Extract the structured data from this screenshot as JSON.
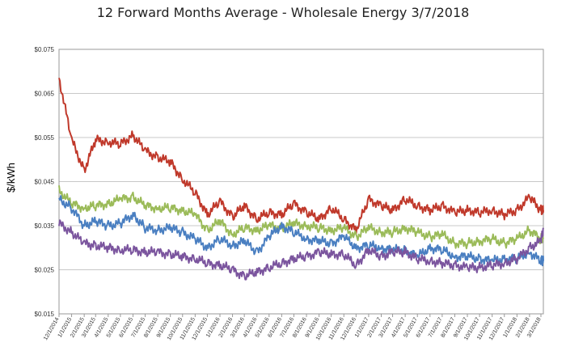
{
  "chart_data": {
    "type": "line",
    "title": "12 Forward Months Average - Wholesale Energy 3/7/2018",
    "xlabel": "",
    "ylabel": "$/kWh",
    "ylim": [
      0.015,
      0.075
    ],
    "yticks": [
      "$0.015",
      "$0.025",
      "$0.035",
      "$0.045",
      "$0.055",
      "$0.065",
      "$0.075"
    ],
    "grid": "horizontal",
    "legend": "none",
    "xlim": [
      "2014-12-01",
      "2018-03-07"
    ],
    "x_tick_labels": [
      "12/1/2014",
      "1/1/2015",
      "2/1/2015",
      "3/1/2015",
      "4/1/2015",
      "5/1/2015",
      "6/1/2015",
      "7/1/2015",
      "8/1/2015",
      "9/1/2015",
      "10/1/2015",
      "11/1/2015",
      "12/1/2015",
      "1/1/2016",
      "2/1/2016",
      "3/1/2016",
      "4/1/2016",
      "5/1/2016",
      "6/1/2016",
      "7/1/2016",
      "8/1/2016",
      "9/1/2016",
      "10/1/2016",
      "11/1/2016",
      "12/1/2016",
      "1/1/2017",
      "2/1/2017",
      "3/1/2017",
      "4/1/2017",
      "5/1/2017",
      "6/1/2017",
      "7/1/2017",
      "8/1/2017",
      "9/1/2017",
      "10/1/2017",
      "11/1/2017",
      "12/1/2017",
      "1/1/2018",
      "2/1/2018",
      "3/1/2018"
    ],
    "x": [
      "2014-12-01",
      "2015-01-01",
      "2015-02-01",
      "2015-03-01",
      "2015-04-01",
      "2015-05-01",
      "2015-06-01",
      "2015-07-01",
      "2015-08-01",
      "2015-09-01",
      "2015-10-01",
      "2015-11-01",
      "2015-12-01",
      "2016-01-01",
      "2016-02-01",
      "2016-03-01",
      "2016-04-01",
      "2016-05-01",
      "2016-06-01",
      "2016-07-01",
      "2016-08-01",
      "2016-09-01",
      "2016-10-01",
      "2016-11-01",
      "2016-12-01",
      "2017-01-01",
      "2017-02-01",
      "2017-03-01",
      "2017-04-01",
      "2017-05-01",
      "2017-06-01",
      "2017-07-01",
      "2017-08-01",
      "2017-09-01",
      "2017-10-01",
      "2017-11-01",
      "2017-12-01",
      "2018-01-01",
      "2018-02-01",
      "2018-03-01",
      "2018-03-07"
    ],
    "series": [
      {
        "color": "#c0392b",
        "values": [
          0.0685,
          0.0545,
          0.0475,
          0.0545,
          0.054,
          0.0535,
          0.0555,
          0.052,
          0.0505,
          0.0495,
          0.0455,
          0.0425,
          0.0375,
          0.0405,
          0.037,
          0.0395,
          0.0365,
          0.038,
          0.0375,
          0.04,
          0.038,
          0.0365,
          0.039,
          0.0365,
          0.034,
          0.041,
          0.0395,
          0.0385,
          0.041,
          0.0395,
          0.0385,
          0.0395,
          0.038,
          0.0385,
          0.038,
          0.0385,
          0.0375,
          0.0385,
          0.0415,
          0.0385,
          0.0385
        ]
      },
      {
        "color": "#9bbb59",
        "values": [
          0.043,
          0.04,
          0.039,
          0.0395,
          0.04,
          0.041,
          0.0415,
          0.0395,
          0.039,
          0.039,
          0.0385,
          0.0375,
          0.034,
          0.036,
          0.033,
          0.0345,
          0.034,
          0.035,
          0.0345,
          0.0355,
          0.035,
          0.0345,
          0.034,
          0.0345,
          0.0325,
          0.0345,
          0.0335,
          0.0335,
          0.0345,
          0.0335,
          0.0325,
          0.033,
          0.031,
          0.031,
          0.0315,
          0.032,
          0.031,
          0.032,
          0.034,
          0.032,
          0.032
        ]
      },
      {
        "color": "#4a7fc1",
        "values": [
          0.041,
          0.039,
          0.035,
          0.036,
          0.035,
          0.0355,
          0.0375,
          0.0345,
          0.034,
          0.0345,
          0.0335,
          0.032,
          0.03,
          0.032,
          0.0305,
          0.0315,
          0.029,
          0.0325,
          0.035,
          0.0335,
          0.032,
          0.0315,
          0.031,
          0.0325,
          0.03,
          0.0305,
          0.03,
          0.0295,
          0.0295,
          0.028,
          0.03,
          0.0295,
          0.028,
          0.028,
          0.0275,
          0.027,
          0.0275,
          0.0275,
          0.029,
          0.027,
          0.027
        ]
      },
      {
        "color": "#7b559e",
        "values": [
          0.0355,
          0.0335,
          0.031,
          0.0305,
          0.03,
          0.0295,
          0.0295,
          0.029,
          0.029,
          0.0285,
          0.028,
          0.0275,
          0.0265,
          0.026,
          0.025,
          0.0235,
          0.0245,
          0.0255,
          0.0265,
          0.0275,
          0.028,
          0.029,
          0.0285,
          0.0285,
          0.026,
          0.0295,
          0.028,
          0.029,
          0.029,
          0.0275,
          0.027,
          0.0265,
          0.026,
          0.0255,
          0.0255,
          0.026,
          0.0265,
          0.0275,
          0.03,
          0.0315,
          0.0345
        ]
      }
    ]
  }
}
